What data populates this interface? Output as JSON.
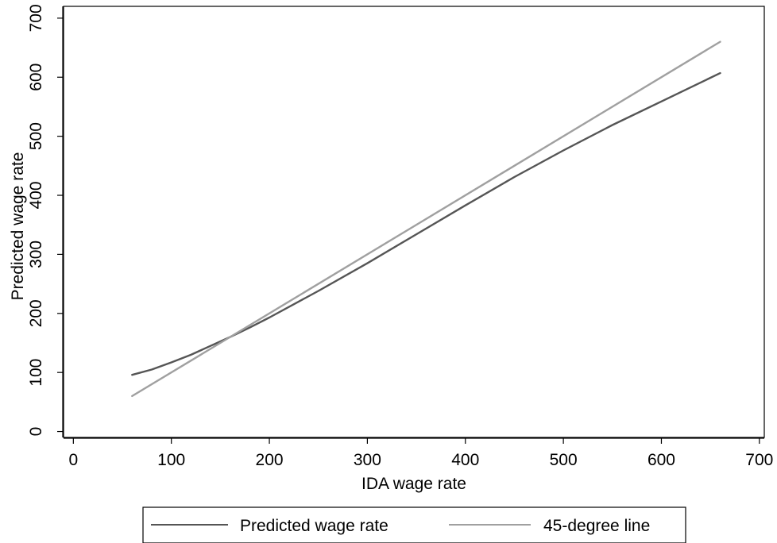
{
  "chart_data": {
    "type": "line",
    "xlabel": "IDA wage rate",
    "ylabel": "Predicted wage rate",
    "xlim": [
      -10,
      705
    ],
    "ylim": [
      -10,
      720
    ],
    "xticks": [
      0,
      100,
      200,
      300,
      400,
      500,
      600,
      700
    ],
    "yticks": [
      0,
      100,
      200,
      300,
      400,
      500,
      600,
      700
    ],
    "tick_labels_x": [
      "0",
      "100",
      "200",
      "300",
      "400",
      "500",
      "600",
      "700"
    ],
    "tick_labels_y": [
      "0",
      "100",
      "200",
      "300",
      "400",
      "500",
      "600",
      "700"
    ],
    "grid": false,
    "legend_position": "bottom",
    "series": [
      {
        "name": "Predicted wage rate",
        "color": "#555555",
        "x": [
          60,
          80,
          100,
          120,
          140,
          160,
          180,
          200,
          250,
          300,
          350,
          400,
          450,
          500,
          550,
          600,
          630,
          660
        ],
        "y": [
          96,
          105,
          117,
          130,
          145,
          160,
          176,
          193,
          238,
          285,
          334,
          383,
          431,
          476,
          519,
          559,
          583,
          607
        ]
      },
      {
        "name": "45-degree line",
        "color": "#a0a0a0",
        "x": [
          60,
          660
        ],
        "y": [
          60,
          660
        ]
      }
    ]
  }
}
